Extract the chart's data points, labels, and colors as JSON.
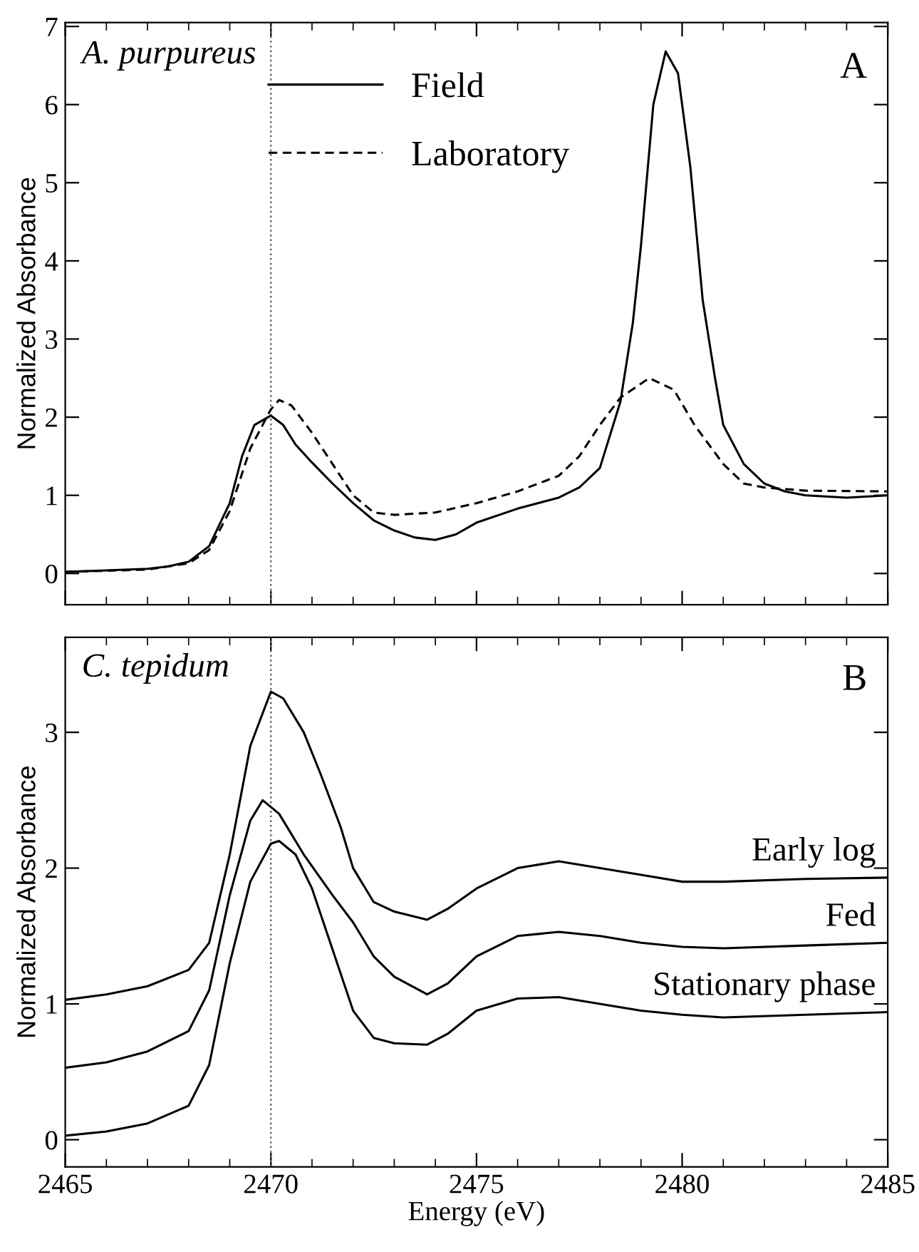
{
  "chart_data": [
    {
      "type": "line",
      "ylabel": "Normalized Absorbance",
      "xlim": [
        2465,
        2485
      ],
      "ylim": [
        -0.4,
        7.05
      ],
      "xticks": [
        {
          "value": 2465,
          "label": null
        },
        {
          "value": 2470,
          "label": null
        },
        {
          "value": 2475,
          "label": null
        },
        {
          "value": 2480,
          "label": null
        },
        {
          "value": 2485,
          "label": null
        }
      ],
      "yticks": [
        0,
        1,
        2,
        3,
        4,
        5,
        6,
        7
      ],
      "tick_labels": "y",
      "legend": "top",
      "grid": false,
      "ref_lines": [
        {
          "axis": "x",
          "value": 2470,
          "line_style": "dotted",
          "color": "#666666"
        }
      ],
      "annotations": [
        "A. purpureus",
        "A"
      ],
      "series": [
        {
          "name": "Field",
          "color": "#000000",
          "line_style": "solid",
          "x": [
            2465,
            2466,
            2467,
            2467.5,
            2468,
            2468.5,
            2469,
            2469.3,
            2469.6,
            2470,
            2470.3,
            2470.6,
            2471,
            2471.5,
            2472,
            2472.5,
            2473,
            2473.5,
            2474,
            2474.5,
            2475,
            2476,
            2477,
            2477.5,
            2478,
            2478.5,
            2478.8,
            2479,
            2479.3,
            2479.6,
            2479.9,
            2480.2,
            2480.5,
            2480.8,
            2481,
            2481.5,
            2482,
            2482.5,
            2483,
            2484,
            2485
          ],
          "values": [
            0.02,
            0.04,
            0.06,
            0.09,
            0.15,
            0.35,
            0.9,
            1.5,
            1.9,
            2.02,
            1.9,
            1.65,
            1.42,
            1.15,
            0.9,
            0.68,
            0.55,
            0.46,
            0.43,
            0.5,
            0.65,
            0.83,
            0.97,
            1.1,
            1.35,
            2.2,
            3.2,
            4.2,
            6.0,
            6.68,
            6.4,
            5.2,
            3.5,
            2.5,
            1.9,
            1.4,
            1.15,
            1.05,
            1.0,
            0.97,
            1.0
          ]
        },
        {
          "name": "Laboratory",
          "color": "#000000",
          "line_style": "dashed",
          "x": [
            2465,
            2467,
            2468,
            2468.5,
            2469,
            2469.5,
            2470,
            2470.2,
            2470.5,
            2471,
            2471.5,
            2472,
            2472.5,
            2473,
            2474,
            2475,
            2476,
            2477,
            2477.5,
            2478,
            2478.5,
            2479.2,
            2479.8,
            2480.3,
            2481,
            2481.5,
            2482,
            2483,
            2485
          ],
          "values": [
            0.02,
            0.05,
            0.13,
            0.3,
            0.8,
            1.6,
            2.1,
            2.22,
            2.15,
            1.8,
            1.4,
            1.0,
            0.78,
            0.75,
            0.78,
            0.9,
            1.05,
            1.25,
            1.5,
            1.9,
            2.25,
            2.5,
            2.35,
            1.9,
            1.4,
            1.15,
            1.1,
            1.06,
            1.05
          ]
        }
      ]
    },
    {
      "type": "line",
      "xlabel": "Energy (eV)",
      "ylabel": "Normalized Absorbance",
      "xlim": [
        2465,
        2485
      ],
      "ylim": [
        -0.2,
        3.7
      ],
      "xticks": [
        2465,
        2470,
        2475,
        2480,
        2485
      ],
      "yticks": [
        0,
        1,
        2,
        3
      ],
      "legend": "right",
      "grid": false,
      "ref_lines": [
        {
          "axis": "x",
          "value": 2470,
          "line_style": "dotted",
          "color": "#666666"
        }
      ],
      "annotations": [
        "C. tepidum",
        "B"
      ],
      "series": [
        {
          "name": "Early log",
          "color": "#000000",
          "line_style": "solid",
          "x": [
            2465,
            2466,
            2467,
            2468,
            2468.5,
            2469,
            2469.5,
            2470,
            2470.3,
            2470.8,
            2471.2,
            2471.7,
            2472,
            2472.5,
            2473,
            2473.8,
            2474.3,
            2475,
            2476,
            2477,
            2478,
            2479,
            2480,
            2481,
            2483,
            2485
          ],
          "values": [
            1.03,
            1.07,
            1.13,
            1.25,
            1.45,
            2.1,
            2.9,
            3.3,
            3.25,
            3.0,
            2.7,
            2.3,
            2.0,
            1.75,
            1.68,
            1.62,
            1.7,
            1.85,
            2.0,
            2.05,
            2.0,
            1.95,
            1.9,
            1.9,
            1.92,
            1.93
          ]
        },
        {
          "name": "Fed",
          "color": "#000000",
          "line_style": "solid",
          "x": [
            2465,
            2466,
            2467,
            2468,
            2468.5,
            2469,
            2469.5,
            2469.8,
            2470.2,
            2470.8,
            2471.5,
            2472,
            2472.5,
            2473,
            2473.8,
            2474.3,
            2475,
            2476,
            2477,
            2478,
            2479,
            2480,
            2481,
            2483,
            2485
          ],
          "values": [
            0.53,
            0.57,
            0.65,
            0.8,
            1.1,
            1.8,
            2.35,
            2.5,
            2.4,
            2.1,
            1.8,
            1.6,
            1.35,
            1.2,
            1.07,
            1.15,
            1.35,
            1.5,
            1.53,
            1.5,
            1.45,
            1.42,
            1.41,
            1.43,
            1.45
          ]
        },
        {
          "name": "Stationary phase",
          "color": "#000000",
          "line_style": "solid",
          "x": [
            2465,
            2466,
            2467,
            2468,
            2468.5,
            2469,
            2469.5,
            2470,
            2470.2,
            2470.6,
            2471,
            2471.5,
            2472,
            2472.5,
            2473,
            2473.8,
            2474.3,
            2475,
            2476,
            2477,
            2478,
            2479,
            2480,
            2481,
            2483,
            2485
          ],
          "values": [
            0.03,
            0.06,
            0.12,
            0.25,
            0.55,
            1.3,
            1.9,
            2.18,
            2.2,
            2.1,
            1.85,
            1.4,
            0.95,
            0.75,
            0.71,
            0.7,
            0.78,
            0.95,
            1.04,
            1.05,
            1.0,
            0.95,
            0.92,
            0.9,
            0.92,
            0.94
          ]
        }
      ]
    }
  ]
}
